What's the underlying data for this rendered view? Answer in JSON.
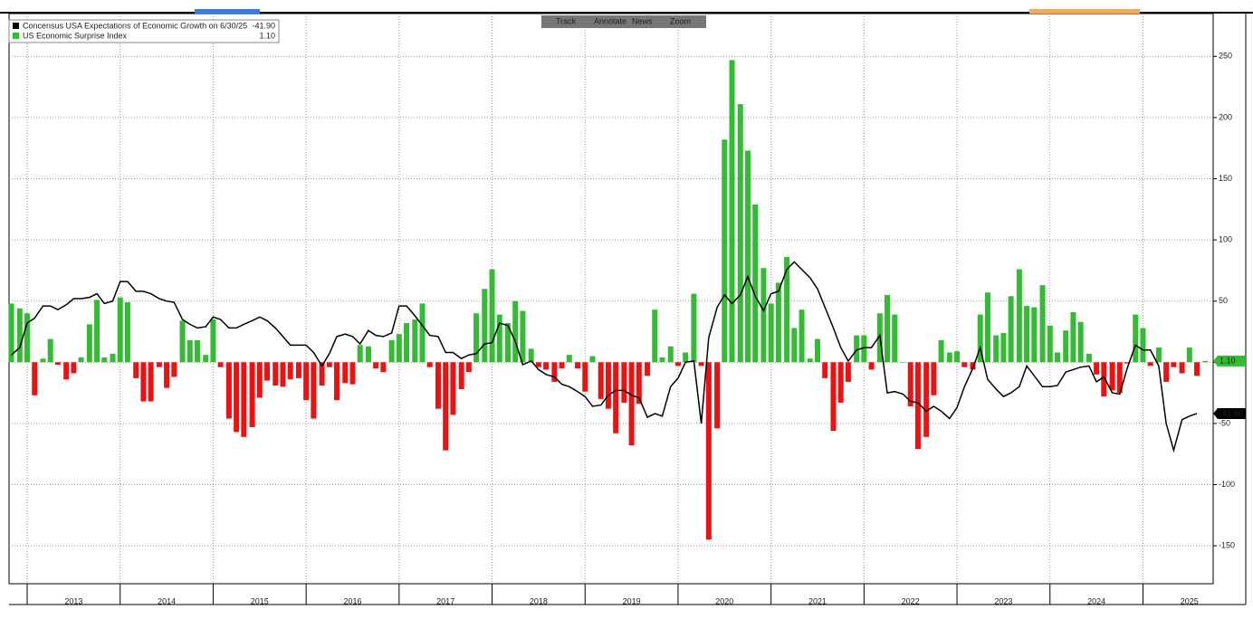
{
  "toolbar": [
    "Track",
    "Annotate",
    "News",
    "Zoom"
  ],
  "chart_data": {
    "type": "bar-line",
    "xlim": [
      2012.805,
      2025.755
    ],
    "xticks": [
      2013,
      2014,
      2015,
      2016,
      2017,
      2018,
      2019,
      2020,
      2021,
      2022,
      2023,
      2024,
      2025
    ],
    "ylim": [
      -181,
      285
    ],
    "yticks": [
      -150,
      -100,
      -50,
      0,
      50,
      100,
      150,
      200,
      250
    ],
    "grid": true,
    "legend": "top-left",
    "x": [
      2012.83,
      2012.92,
      2013.0,
      2013.08,
      2013.17,
      2013.25,
      2013.33,
      2013.42,
      2013.5,
      2013.58,
      2013.67,
      2013.75,
      2013.83,
      2013.92,
      2014.0,
      2014.08,
      2014.17,
      2014.25,
      2014.33,
      2014.42,
      2014.5,
      2014.58,
      2014.67,
      2014.75,
      2014.83,
      2014.92,
      2015.0,
      2015.08,
      2015.17,
      2015.25,
      2015.33,
      2015.42,
      2015.5,
      2015.58,
      2015.67,
      2015.75,
      2015.83,
      2015.92,
      2016.0,
      2016.08,
      2016.17,
      2016.25,
      2016.33,
      2016.42,
      2016.5,
      2016.58,
      2016.67,
      2016.75,
      2016.83,
      2016.92,
      2017.0,
      2017.08,
      2017.17,
      2017.25,
      2017.33,
      2017.42,
      2017.5,
      2017.58,
      2017.67,
      2017.75,
      2017.83,
      2017.92,
      2018.0,
      2018.08,
      2018.17,
      2018.25,
      2018.33,
      2018.42,
      2018.5,
      2018.58,
      2018.67,
      2018.75,
      2018.83,
      2018.92,
      2019.0,
      2019.08,
      2019.17,
      2019.25,
      2019.33,
      2019.42,
      2019.5,
      2019.58,
      2019.67,
      2019.75,
      2019.83,
      2019.92,
      2020.0,
      2020.08,
      2020.17,
      2020.25,
      2020.33,
      2020.42,
      2020.5,
      2020.58,
      2020.67,
      2020.75,
      2020.83,
      2020.92,
      2021.0,
      2021.08,
      2021.17,
      2021.25,
      2021.33,
      2021.42,
      2021.5,
      2021.58,
      2021.67,
      2021.75,
      2021.83,
      2021.92,
      2022.0,
      2022.08,
      2022.17,
      2022.25,
      2022.33,
      2022.42,
      2022.5,
      2022.58,
      2022.67,
      2022.75,
      2022.83,
      2022.92,
      2023.0,
      2023.08,
      2023.17,
      2023.25,
      2023.33,
      2023.42,
      2023.5,
      2023.58,
      2023.67,
      2023.75,
      2023.83,
      2023.92,
      2024.0,
      2024.08,
      2024.17,
      2024.25,
      2024.33,
      2024.42,
      2024.5,
      2024.58,
      2024.67,
      2024.75,
      2024.83,
      2024.92,
      2025.0,
      2025.08,
      2025.17,
      2025.25,
      2025.33,
      2025.42,
      2025.5,
      2025.58,
      2025.67
    ],
    "series": [
      {
        "name": "Concensus USA Expectations of Economic Growth on 6/30/25",
        "kind": "line",
        "color": "#000000",
        "last_label": "-41.90",
        "values": [
          6,
          12,
          32,
          36,
          46,
          46,
          43,
          47,
          52,
          52,
          53,
          56,
          48,
          50,
          66,
          66,
          58,
          58,
          56,
          52,
          50,
          49,
          35,
          31,
          28,
          29,
          37,
          35,
          28,
          28,
          31,
          34,
          37,
          34,
          28,
          21,
          14,
          14,
          14,
          8,
          -3,
          7,
          21,
          23,
          21,
          15,
          26,
          22,
          21,
          24,
          46,
          46,
          38,
          30,
          22,
          21,
          8,
          8,
          3,
          6,
          7,
          15,
          16,
          32,
          30,
          17,
          -2,
          1,
          -6,
          -10,
          -12,
          -18,
          -20,
          -24,
          -28,
          -36,
          -35,
          -27,
          -23,
          -23,
          -27,
          -29,
          -45,
          -42,
          -44,
          -20,
          -13,
          0,
          1,
          -50,
          20,
          45,
          55,
          48,
          55,
          70,
          54,
          42,
          56,
          58,
          76,
          82,
          76,
          69,
          60,
          45,
          28,
          12,
          1,
          10,
          12,
          12,
          22,
          -25,
          -24,
          -26,
          -32,
          -33,
          -40,
          -36,
          -40,
          -46,
          -37,
          -20,
          -5,
          12,
          -14,
          -22,
          -28,
          -25,
          -20,
          -3,
          -11,
          -20,
          -20,
          -19,
          -8,
          -6,
          -4,
          -3,
          -16,
          -12,
          -25,
          -26,
          -5,
          14,
          10,
          10,
          -3,
          -50,
          -72,
          -47,
          -44,
          -41.9,
          null
        ]
      },
      {
        "name": "US Economic Surprise Index",
        "kind": "bar",
        "color": "#33bb33",
        "negative_color": "#ee1111",
        "last_label": "1.10",
        "values": [
          48,
          44,
          40,
          -27,
          3,
          19,
          -2,
          -14,
          -9,
          4,
          31,
          51,
          4,
          7,
          53,
          49,
          -13,
          -32,
          -32,
          -4,
          -21,
          -12,
          34,
          18,
          18,
          6,
          35,
          -4,
          -46,
          -57,
          -61,
          -53,
          -29,
          -15,
          -19,
          -20,
          -14,
          -13,
          -31,
          -46,
          -19,
          -4,
          -31,
          -17,
          -18,
          14,
          13,
          -5,
          -8,
          18,
          23,
          32,
          35,
          48,
          -4,
          -38,
          -72,
          -43,
          -22,
          -8,
          40,
          60,
          76,
          39,
          32,
          50,
          42,
          11,
          -4,
          -6,
          -16,
          -5,
          6,
          -5,
          -24,
          5,
          -30,
          -38,
          -58,
          -33,
          -68,
          -34,
          -11,
          43,
          4,
          13,
          -3,
          8,
          56,
          -3,
          -145,
          -54,
          182,
          247,
          211,
          173,
          129,
          77,
          48,
          65,
          86,
          28,
          43,
          3,
          19,
          -13,
          -56,
          -33,
          -16,
          22,
          22,
          -6,
          40,
          55,
          39,
          0,
          -36,
          -71,
          -61,
          -27,
          18,
          8,
          9,
          -4,
          -6,
          39,
          57,
          22,
          24,
          54,
          76,
          46,
          45,
          63,
          30,
          8,
          26,
          41,
          33,
          7,
          -10,
          -28,
          -23,
          -25,
          -1,
          39,
          28,
          -3,
          12,
          -16,
          -4,
          -9,
          12,
          -11,
          1.1
        ]
      }
    ]
  }
}
